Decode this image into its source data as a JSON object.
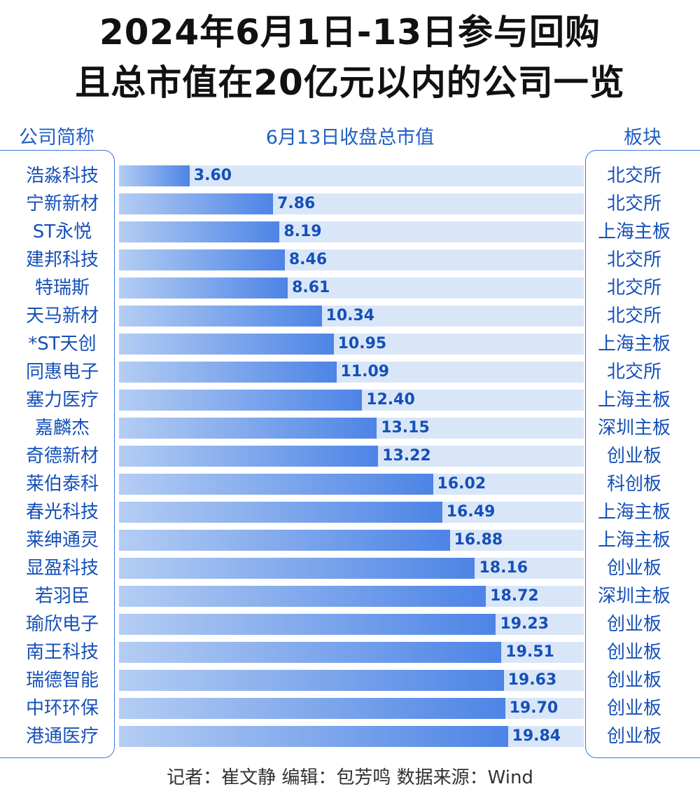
{
  "header": {
    "title_line1": "2024年6月1日-13日参与回购",
    "title_line2": "且总市值在20亿元以内的公司一览"
  },
  "columns": {
    "company": "公司简称",
    "value": "6月13日收盘总市值",
    "board": "板块"
  },
  "footer": "记者：崔文静  编辑：包芳鸣  数据来源：Wind",
  "colors": {
    "accent": "#1550b8",
    "bar_start": "#b4cdf3",
    "bar_end": "#4d84e6",
    "track": "#d9e6f8",
    "border": "#3a78d8"
  },
  "chart_data": {
    "type": "bar",
    "orientation": "horizontal",
    "title": "2024年6月1日-13日参与回购且总市值在20亿元以内的公司一览",
    "categories": [
      "浩淼科技",
      "宁新新材",
      "ST永悦",
      "建邦科技",
      "特瑞斯",
      "天马新材",
      "*ST天创",
      "同惠电子",
      "塞力医疗",
      "嘉麟杰",
      "奇德新材",
      "莱伯泰科",
      "春光科技",
      "莱绅通灵",
      "显盈科技",
      "若羽臣",
      "瑜欣电子",
      "南王科技",
      "瑞德智能",
      "中环环保",
      "港通医疗"
    ],
    "values": [
      3.6,
      7.86,
      8.19,
      8.46,
      8.61,
      10.34,
      10.95,
      11.09,
      12.4,
      13.15,
      13.22,
      16.02,
      16.49,
      16.88,
      18.16,
      18.72,
      19.23,
      19.51,
      19.63,
      19.7,
      19.84
    ],
    "value_labels": [
      "3.60",
      "7.86",
      "8.19",
      "8.46",
      "8.61",
      "10.34",
      "10.95",
      "11.09",
      "12.40",
      "13.15",
      "13.22",
      "16.02",
      "16.49",
      "16.88",
      "18.16",
      "18.72",
      "19.23",
      "19.51",
      "19.63",
      "19.70",
      "19.84"
    ],
    "boards": [
      "北交所",
      "北交所",
      "上海主板",
      "北交所",
      "北交所",
      "北交所",
      "上海主板",
      "北交所",
      "上海主板",
      "深圳主板",
      "创业板",
      "科创板",
      "上海主板",
      "上海主板",
      "创业板",
      "深圳主板",
      "创业板",
      "创业板",
      "创业板",
      "创业板",
      "创业板"
    ],
    "xlim": [
      0,
      24
    ],
    "grid": false,
    "legend": "none"
  }
}
